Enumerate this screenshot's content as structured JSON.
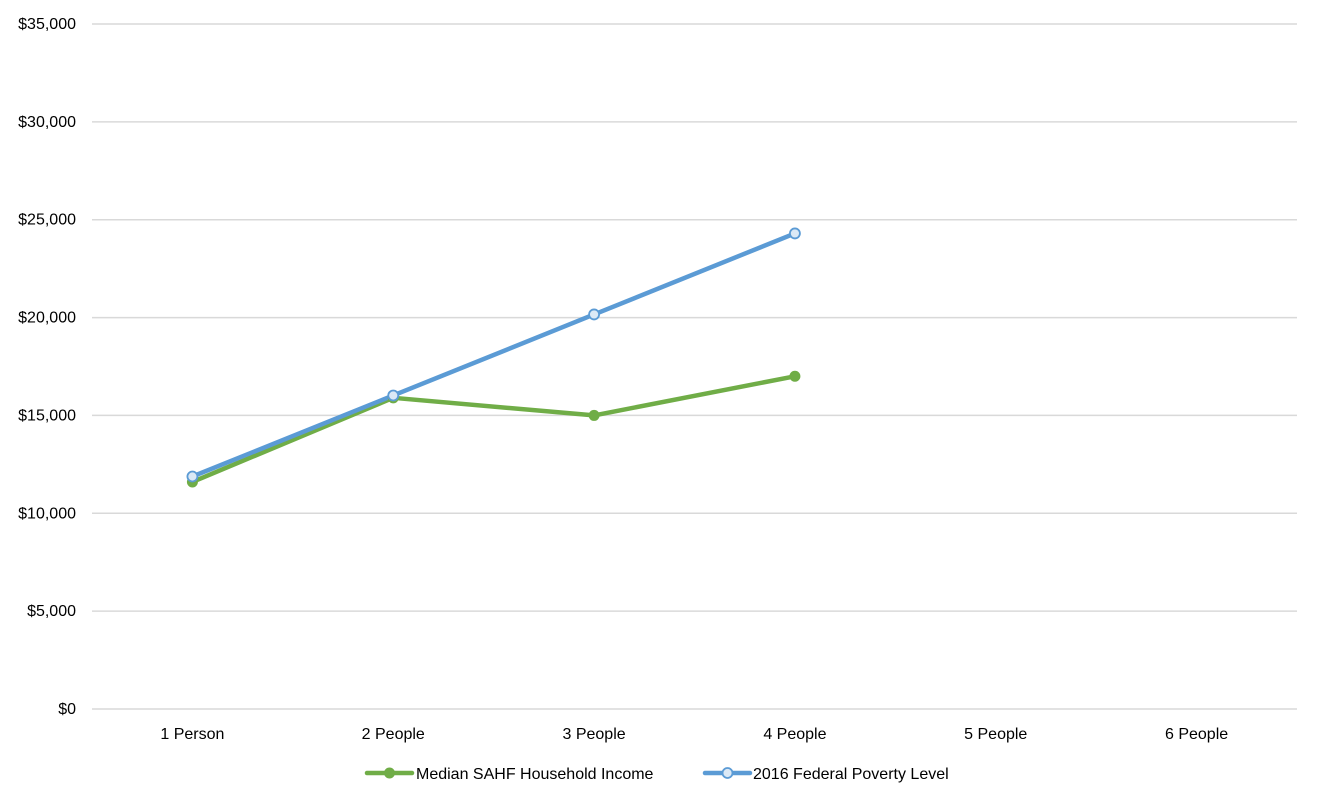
{
  "chart_data": {
    "type": "line",
    "title": "",
    "xlabel": "",
    "ylabel": "",
    "categories": [
      "1 Person",
      "2 People",
      "3 People",
      "4 People",
      "5 People",
      "6 People"
    ],
    "ylim": [
      0,
      35000
    ],
    "yticks": [
      0,
      5000,
      10000,
      15000,
      20000,
      25000,
      30000,
      35000
    ],
    "ytick_labels": [
      "$0",
      "$5,000",
      "$10,000",
      "$15,000",
      "$20,000",
      "$25,000",
      "$30,000",
      "$35,000"
    ],
    "grid": true,
    "legend_position": "bottom",
    "series": [
      {
        "name": "Median SAHF Household Income",
        "color": "#70ad47",
        "marker": "filled-circle",
        "values": [
          11600,
          15900,
          15000,
          17000,
          null,
          null
        ]
      },
      {
        "name": "2016 Federal Poverty Level",
        "color": "#5b9bd5",
        "marker": "hollow-circle",
        "values": [
          11880,
          16020,
          20160,
          24300,
          null,
          null
        ]
      }
    ]
  }
}
